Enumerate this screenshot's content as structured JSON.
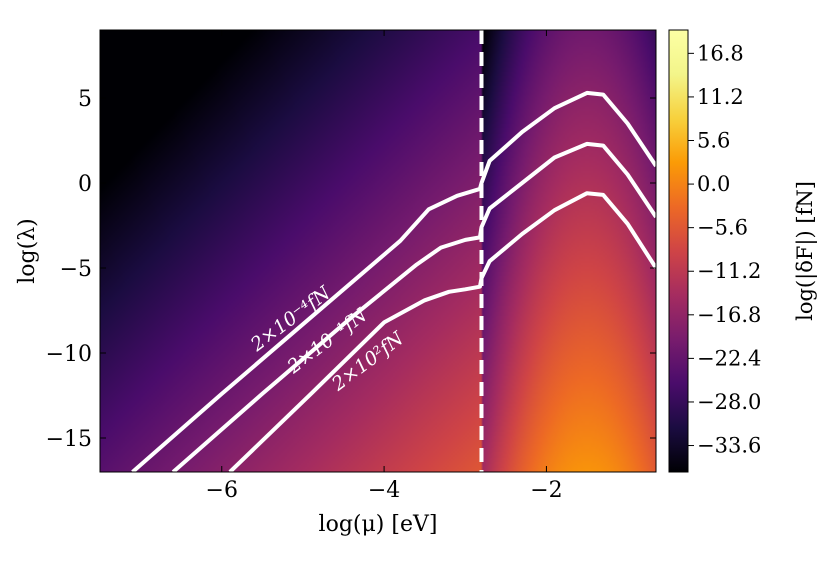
{
  "chart_data": {
    "type": "heatmap",
    "title": "",
    "xlabel": "log(μ) [eV]",
    "ylabel": "log(λ)",
    "xlim": [
      -7.5,
      -0.65
    ],
    "ylim": [
      -17,
      9
    ],
    "x_ticks": [
      -6,
      -4,
      -2
    ],
    "x_tick_labels": [
      "−6",
      "−4",
      "−2"
    ],
    "y_ticks": [
      5,
      0,
      -5,
      -10,
      -15
    ],
    "y_tick_labels": [
      "5",
      "0",
      "−5",
      "−10",
      "−15"
    ],
    "colorbar": {
      "label": "log(|δF|) [fN]",
      "range": [
        -37,
        19.8
      ],
      "ticks": [
        16.8,
        11.2,
        5.6,
        0.0,
        -5.6,
        -11.2,
        -16.8,
        -22.4,
        -28.0,
        -33.6
      ],
      "tick_labels": [
        "16.8",
        "11.2",
        "5.6",
        "0.0",
        "−5.6",
        "−11.2",
        "−16.8",
        "−22.4",
        "−28.0",
        "−33.6"
      ],
      "colormap": "inferno"
    },
    "vertical_line": {
      "x": -2.8,
      "style": "dashed",
      "color": "#ffffff"
    },
    "series": [
      {
        "label": "2×10⁻⁴fN",
        "points": [
          [
            -7.1,
            -17
          ],
          [
            -6.0,
            -12.4
          ],
          [
            -4.9,
            -7.9
          ],
          [
            -3.8,
            -3.4
          ],
          [
            -3.45,
            -1.55
          ],
          [
            -3.1,
            -0.75
          ],
          [
            -2.82,
            -0.35
          ],
          [
            -2.8,
            0.0
          ],
          [
            -2.7,
            1.3
          ],
          [
            -2.3,
            3.0
          ],
          [
            -1.9,
            4.4
          ],
          [
            -1.5,
            5.3
          ],
          [
            -1.3,
            5.2
          ],
          [
            -1.0,
            3.5
          ],
          [
            -0.65,
            1.0
          ]
        ]
      },
      {
        "label": "2×10⁻¹fN",
        "points": [
          [
            -6.6,
            -17
          ],
          [
            -5.5,
            -12.4
          ],
          [
            -4.4,
            -7.9
          ],
          [
            -3.6,
            -4.8
          ],
          [
            -3.3,
            -3.8
          ],
          [
            -3.0,
            -3.35
          ],
          [
            -2.82,
            -3.2
          ],
          [
            -2.8,
            -2.6
          ],
          [
            -2.7,
            -1.5
          ],
          [
            -2.3,
            0.0
          ],
          [
            -1.9,
            1.5
          ],
          [
            -1.5,
            2.3
          ],
          [
            -1.3,
            2.2
          ],
          [
            -1.0,
            0.5
          ],
          [
            -0.65,
            -2.0
          ]
        ]
      },
      {
        "label": "2×10²fN",
        "points": [
          [
            -5.9,
            -17
          ],
          [
            -4.9,
            -12.4
          ],
          [
            -4.0,
            -8.2
          ],
          [
            -3.5,
            -6.9
          ],
          [
            -3.2,
            -6.4
          ],
          [
            -3.0,
            -6.25
          ],
          [
            -2.82,
            -6.1
          ],
          [
            -2.8,
            -5.6
          ],
          [
            -2.7,
            -4.6
          ],
          [
            -2.3,
            -3.0
          ],
          [
            -1.9,
            -1.6
          ],
          [
            -1.5,
            -0.6
          ],
          [
            -1.3,
            -0.7
          ],
          [
            -1.0,
            -2.4
          ],
          [
            -0.65,
            -5.0
          ]
        ]
      }
    ],
    "inline_labels": [
      {
        "text": "2×10⁻⁴fN",
        "x": -5.15,
        "y": -8.0
      },
      {
        "text": "2×10⁻¹fN",
        "x": -4.7,
        "y": -9.3
      },
      {
        "text": "2×10²fN",
        "x": -4.2,
        "y": -10.5
      }
    ]
  }
}
